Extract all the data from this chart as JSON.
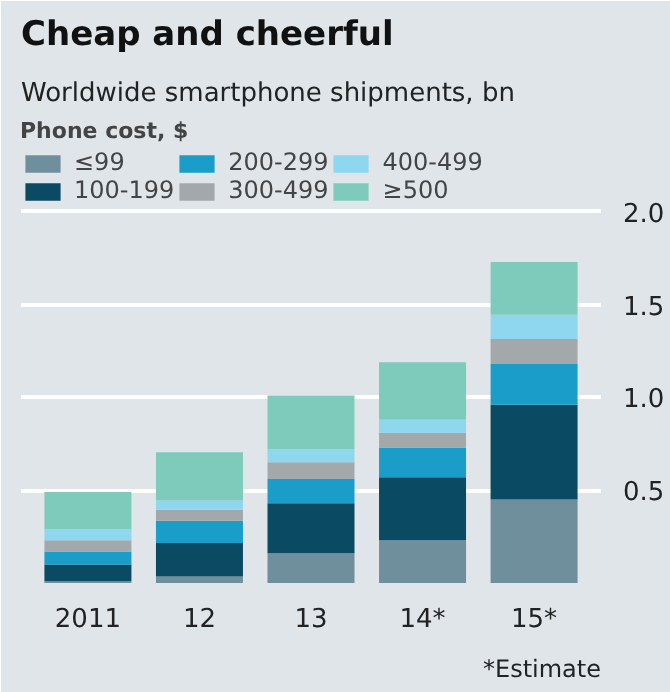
{
  "chart_data": {
    "type": "bar",
    "stacked": true,
    "title": "Cheap and cheerful",
    "subtitle": "Worldwide smartphone shipments, bn",
    "legend_title": "Phone cost, $",
    "legend": "top",
    "categories": [
      "2011",
      "12",
      "13",
      "14*",
      "15*"
    ],
    "series": [
      {
        "name": "≤99",
        "color": "#6f8f9c",
        "values": [
          0.01,
          0.035,
          0.16,
          0.23,
          0.45
        ]
      },
      {
        "name": "100-199",
        "color": "#0b4a63",
        "values": [
          0.09,
          0.18,
          0.27,
          0.34,
          0.51
        ]
      },
      {
        "name": "200-299",
        "color": "#1a9dc9",
        "values": [
          0.07,
          0.12,
          0.13,
          0.16,
          0.22
        ]
      },
      {
        "name": "300-499",
        "color": "#a3a9ab",
        "values": [
          0.06,
          0.06,
          0.09,
          0.08,
          0.135
        ]
      },
      {
        "name": "400-499",
        "color": "#8fd6ef",
        "values": [
          0.06,
          0.05,
          0.07,
          0.07,
          0.13
        ]
      },
      {
        "name": "≥500",
        "color": "#7ecbbb",
        "values": [
          0.2,
          0.26,
          0.29,
          0.31,
          0.285
        ]
      }
    ],
    "ylim": [
      0,
      2.5
    ],
    "yticks": [
      {
        "value": 0.5,
        "label": "0.5"
      },
      {
        "value": 1,
        "label": "1.0"
      },
      {
        "value": 1.5,
        "label": "1.5"
      },
      {
        "value": 2,
        "label": "2.0"
      }
    ],
    "grid": "y",
    "annotations": [
      "*Estimate"
    ]
  }
}
